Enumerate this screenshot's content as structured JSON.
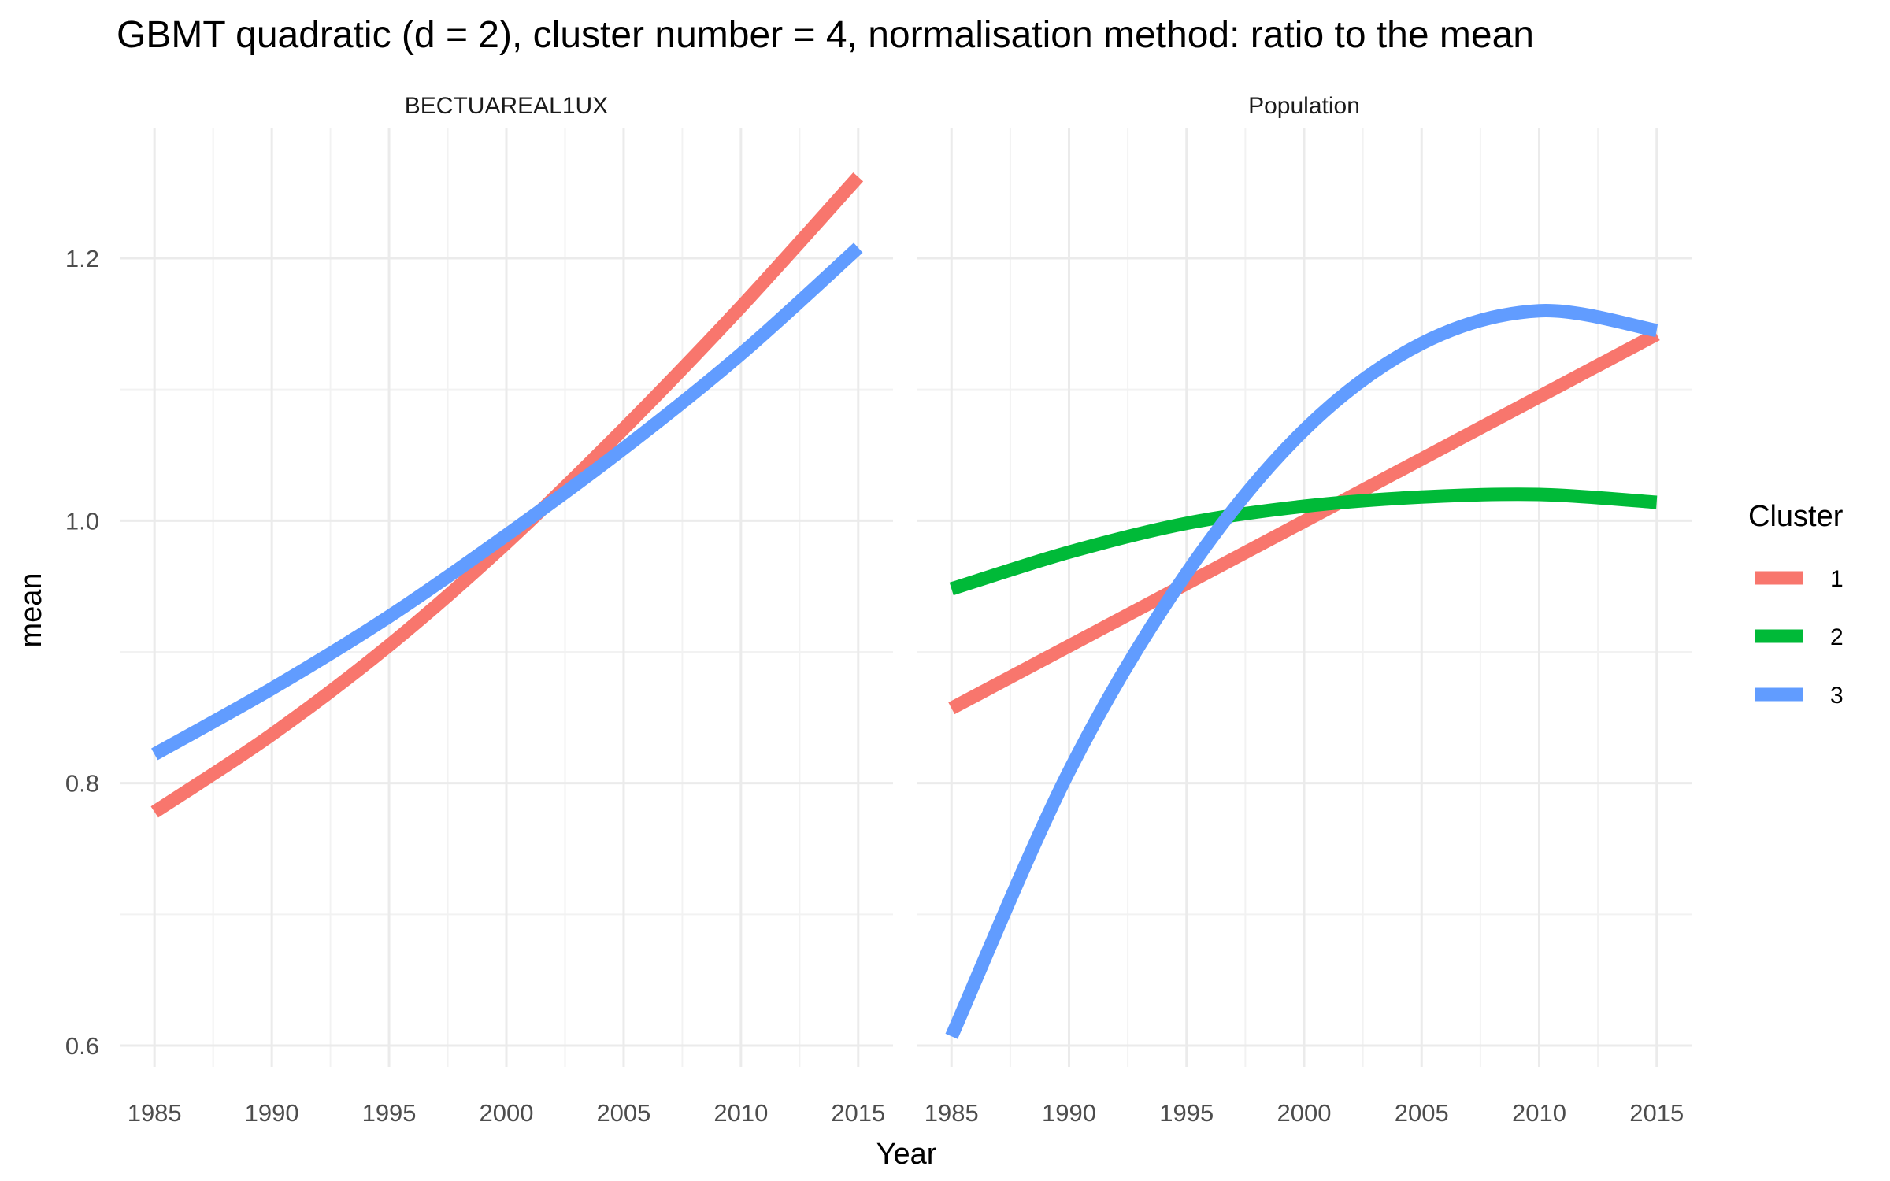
{
  "chart_data": {
    "type": "line",
    "title": "GBMT quadratic (d = 2), cluster number = 4, normalisation method: ratio to the mean",
    "xlabel": "Year",
    "ylabel": "mean",
    "xlim": [
      1985,
      2015
    ],
    "ylim": [
      0.6,
      1.28
    ],
    "x_ticks": [
      1985,
      1990,
      1995,
      2000,
      2005,
      2010,
      2015
    ],
    "y_ticks": [
      0.6,
      0.8,
      1.0,
      1.2
    ],
    "y_tick_labels": [
      "0.6",
      "0.8",
      "1.0",
      "1.2"
    ],
    "grid": true,
    "legend": {
      "title": "Cluster",
      "placement": "right",
      "entries": [
        {
          "label": "1",
          "color": "#F8766D"
        },
        {
          "label": "2",
          "color": "#00BA38"
        },
        {
          "label": "3",
          "color": "#619CFF"
        }
      ]
    },
    "panels": [
      {
        "strip": "BECTUAREAL1UX",
        "series": [
          {
            "name": "1",
            "color": "#F8766D",
            "x": [
              1985,
              1990,
              1995,
              2000,
              2005,
              2010,
              2015
            ],
            "y": [
              0.778,
              0.837,
              0.905,
              0.983,
              1.07,
              1.163,
              1.262
            ]
          },
          {
            "name": "3",
            "color": "#619CFF",
            "x": [
              1985,
              1990,
              1995,
              2000,
              2005,
              2010,
              2015
            ],
            "y": [
              0.822,
              0.872,
              0.927,
              0.989,
              1.055,
              1.127,
              1.208
            ]
          }
        ]
      },
      {
        "strip": "Population",
        "series": [
          {
            "name": "1",
            "color": "#F8766D",
            "x": [
              1985,
              2015
            ],
            "y": [
              0.857,
              1.142
            ]
          },
          {
            "name": "2",
            "color": "#00BA38",
            "x": [
              1985,
              1990,
              1995,
              2000,
              2005,
              2010,
              2015
            ],
            "y": [
              0.948,
              0.976,
              0.998,
              1.011,
              1.018,
              1.02,
              1.014
            ]
          },
          {
            "name": "3",
            "color": "#619CFF",
            "x": [
              1985,
              1990,
              1995,
              2000,
              2005,
              2010,
              2015
            ],
            "y": [
              0.607,
              0.809,
              0.96,
              1.069,
              1.135,
              1.16,
              1.145
            ]
          }
        ]
      }
    ]
  }
}
